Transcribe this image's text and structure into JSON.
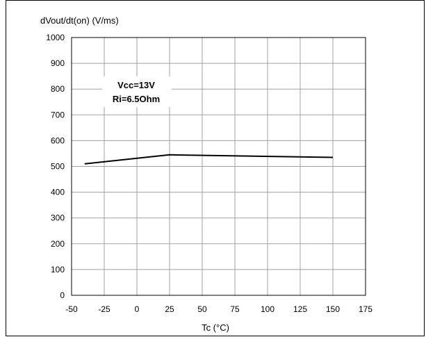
{
  "chart_data": {
    "type": "line",
    "ylabel": "dVout/dt(on) (V/ms)",
    "xlabel": "Tc (°C)",
    "xlim": [
      -50,
      175
    ],
    "ylim": [
      0,
      1000
    ],
    "xticks": [
      -50,
      -25,
      0,
      25,
      50,
      75,
      100,
      125,
      150,
      175
    ],
    "yticks": [
      0,
      100,
      200,
      300,
      400,
      500,
      600,
      700,
      800,
      900,
      1000
    ],
    "grid": true,
    "series": [
      {
        "x": [
          -40,
          25,
          150
        ],
        "y": [
          510,
          545,
          535
        ]
      }
    ],
    "annotation": [
      "Vcc=13V",
      "Ri=6.5Ohm"
    ]
  }
}
